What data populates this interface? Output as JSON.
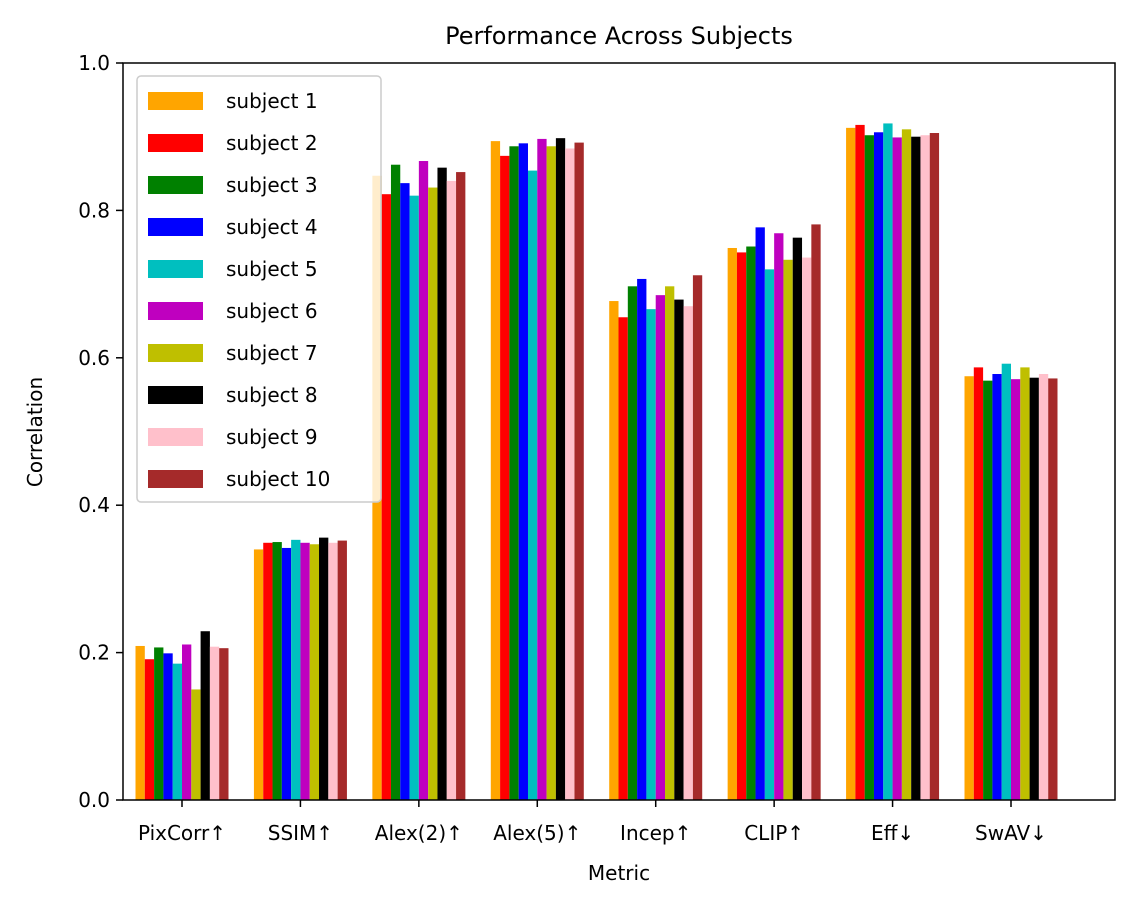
{
  "chart_data": {
    "type": "bar",
    "title": "Performance Across Subjects",
    "xlabel": "Metric",
    "ylabel": "Correlation",
    "ylim": [
      0,
      1.0
    ],
    "yticks": [
      "0.0",
      "0.2",
      "0.4",
      "0.6",
      "0.8",
      "1.0"
    ],
    "grid": false,
    "legend_position": "top-left",
    "categories": [
      "PixCorr↑",
      "SSIM↑",
      "Alex(2)↑",
      "Alex(5)↑",
      "Incep↑",
      "CLIP↑",
      "Eff↓",
      "SwAV↓"
    ],
    "series": [
      {
        "name": "subject 1",
        "color": "#FFA500",
        "values": [
          0.209,
          0.34,
          0.847,
          0.894,
          0.677,
          0.749,
          0.912,
          0.575
        ]
      },
      {
        "name": "subject 2",
        "color": "#FF0000",
        "values": [
          0.191,
          0.349,
          0.822,
          0.874,
          0.655,
          0.743,
          0.916,
          0.587
        ]
      },
      {
        "name": "subject 3",
        "color": "#008000",
        "values": [
          0.207,
          0.35,
          0.862,
          0.887,
          0.697,
          0.751,
          0.902,
          0.569
        ]
      },
      {
        "name": "subject 4",
        "color": "#0000FF",
        "values": [
          0.199,
          0.342,
          0.837,
          0.891,
          0.707,
          0.777,
          0.906,
          0.578
        ]
      },
      {
        "name": "subject 5",
        "color": "#00BFBF",
        "values": [
          0.185,
          0.353,
          0.82,
          0.854,
          0.666,
          0.72,
          0.918,
          0.592
        ]
      },
      {
        "name": "subject 6",
        "color": "#BF00BF",
        "values": [
          0.211,
          0.349,
          0.867,
          0.897,
          0.685,
          0.769,
          0.899,
          0.571
        ]
      },
      {
        "name": "subject 7",
        "color": "#BFBF00",
        "values": [
          0.15,
          0.347,
          0.831,
          0.887,
          0.697,
          0.733,
          0.91,
          0.587
        ]
      },
      {
        "name": "subject 8",
        "color": "#000000",
        "values": [
          0.229,
          0.356,
          0.858,
          0.898,
          0.679,
          0.763,
          0.9,
          0.573
        ]
      },
      {
        "name": "subject 9",
        "color": "#FFC0CB",
        "values": [
          0.208,
          0.349,
          0.84,
          0.884,
          0.67,
          0.736,
          0.902,
          0.578
        ]
      },
      {
        "name": "subject 10",
        "color": "#A52A2A",
        "values": [
          0.206,
          0.352,
          0.852,
          0.892,
          0.712,
          0.781,
          0.905,
          0.572
        ]
      }
    ]
  }
}
